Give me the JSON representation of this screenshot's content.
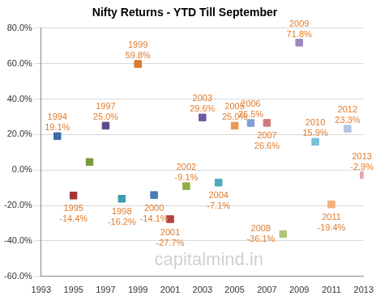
{
  "chart_data": {
    "type": "scatter",
    "title": "Nifty Returns - YTD Till September",
    "annotations": [
      "capitalmind.in"
    ],
    "x": [
      1994,
      1995,
      1996,
      1997,
      1998,
      1999,
      2000,
      2001,
      2002,
      2003,
      2004,
      2005,
      2006,
      2007,
      2008,
      2009,
      2010,
      2011,
      2012,
      2013
    ],
    "values": [
      19.1,
      -14.4,
      4.5,
      25.0,
      -16.2,
      59.8,
      -14.1,
      -27.7,
      -9.1,
      29.6,
      -7.1,
      25.0,
      26.5,
      26.6,
      -36.1,
      71.8,
      15.9,
      -19.4,
      23.3,
      -2.9
    ],
    "value_labels": [
      "19.1%",
      "-14.4%",
      null,
      "25.0%",
      "-16.2%",
      "59.8%",
      "-14.1%",
      "-27.7%",
      "-9.1%",
      "29.6%",
      "-7.1%",
      "25.0%",
      "26.5%",
      "26.6%",
      "-36.1%",
      "71.8%",
      "15.9%",
      "-19.4%",
      "23.3%",
      "-2.9%"
    ],
    "colors": [
      "#3a6ea5",
      "#a33535",
      "#7a9a3a",
      "#5d4a8a",
      "#3e9ab0",
      "#d97b2e",
      "#4a7ab8",
      "#b84040",
      "#8fae4a",
      "#6f5a9e",
      "#4aa8c0",
      "#f0954a",
      "#7f9fd0",
      "#d07a7a",
      "#aac87a",
      "#9a8ac0",
      "#7ac0d8",
      "#f5b080",
      "#b0c4e4",
      "#e8a8a8"
    ],
    "marker": "square",
    "data_labels": true,
    "grid": "y",
    "xlim": [
      1993,
      2013
    ],
    "xticks": [
      1993,
      1995,
      1997,
      1999,
      2001,
      2003,
      2005,
      2007,
      2009,
      2011,
      2013
    ],
    "ylim": [
      -60,
      80
    ],
    "yticks": [
      {
        "value": -60,
        "label": "-60.0%"
      },
      {
        "value": -40,
        "label": "-40.0%"
      },
      {
        "value": -20,
        "label": "-20.0%"
      },
      {
        "value": 0,
        "label": "0.0%"
      },
      {
        "value": 20,
        "label": "20.0%"
      },
      {
        "value": 40,
        "label": "40.0%"
      },
      {
        "value": 60,
        "label": "60.0%"
      },
      {
        "value": 80,
        "label": "80.0%"
      }
    ]
  }
}
